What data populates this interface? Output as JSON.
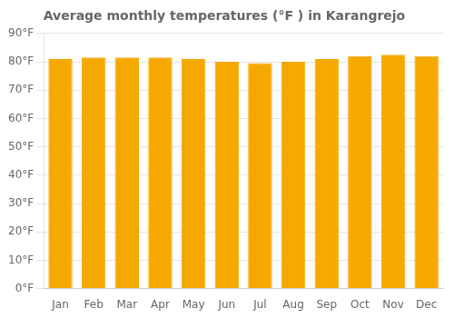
{
  "chart_data": {
    "type": "bar",
    "title": "Average monthly temperatures (°F ) in Karangrejo",
    "categories": [
      "Jan",
      "Feb",
      "Mar",
      "Apr",
      "May",
      "Jun",
      "Jul",
      "Aug",
      "Sep",
      "Oct",
      "Nov",
      "Dec"
    ],
    "values": [
      81,
      81.5,
      81.5,
      81.5,
      81,
      80,
      79.5,
      80,
      81,
      82,
      82.5,
      82
    ],
    "color": "#F5A800",
    "ylim": [
      0,
      90
    ],
    "yticks": [
      {
        "value": 0,
        "label": "0°F"
      },
      {
        "value": 10,
        "label": "10°F"
      },
      {
        "value": 20,
        "label": "20°F"
      },
      {
        "value": 30,
        "label": "30°F"
      },
      {
        "value": 40,
        "label": "40°F"
      },
      {
        "value": 50,
        "label": "50°F"
      },
      {
        "value": 60,
        "label": "60°F"
      },
      {
        "value": 70,
        "label": "70°F"
      },
      {
        "value": 80,
        "label": "80°F"
      },
      {
        "value": 90,
        "label": "90°F"
      }
    ],
    "grid": true
  }
}
